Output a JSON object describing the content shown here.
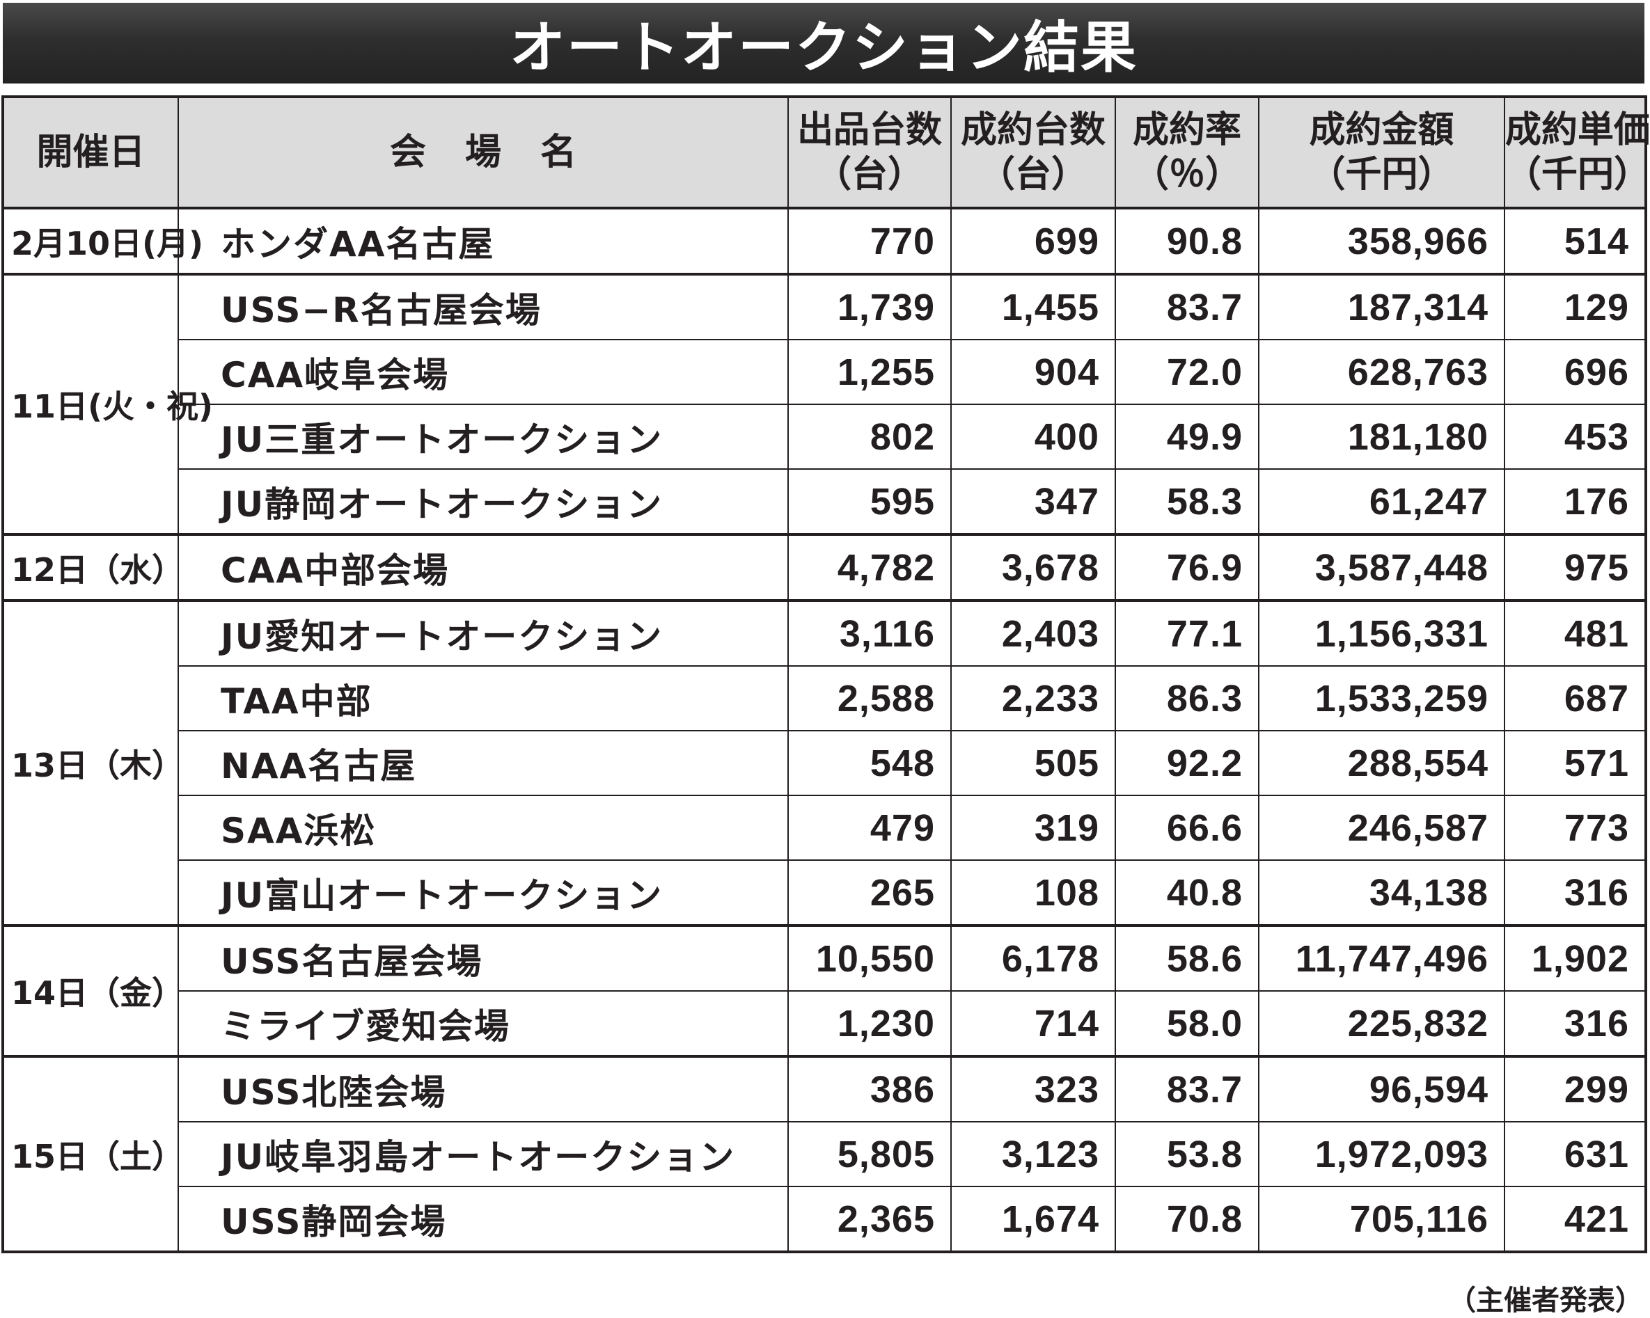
{
  "title": "オートオークション結果",
  "headers": {
    "date": [
      "開催日"
    ],
    "venue": [
      "会場名"
    ],
    "listed": [
      "出品台数",
      "（台）"
    ],
    "sold": [
      "成約台数",
      "（台）"
    ],
    "rate": [
      "成約率",
      "（％）"
    ],
    "amount": [
      "成約金額",
      "（千円）"
    ],
    "unit_price": [
      "成約単価",
      "（千円）"
    ]
  },
  "groups": [
    {
      "date": "2月10日(月)",
      "rows": [
        {
          "venue": "ホンダAA名古屋",
          "listed": "770",
          "sold": "699",
          "rate": "90.8",
          "amount": "358,966",
          "unit_price": "514"
        }
      ]
    },
    {
      "date": "11日(火・祝)",
      "rows": [
        {
          "venue": "USS−R名古屋会場",
          "listed": "1,739",
          "sold": "1,455",
          "rate": "83.7",
          "amount": "187,314",
          "unit_price": "129"
        },
        {
          "venue": "CAA岐阜会場",
          "listed": "1,255",
          "sold": "904",
          "rate": "72.0",
          "amount": "628,763",
          "unit_price": "696"
        },
        {
          "venue": "JU三重オートオークション",
          "listed": "802",
          "sold": "400",
          "rate": "49.9",
          "amount": "181,180",
          "unit_price": "453"
        },
        {
          "venue": "JU静岡オートオークション",
          "listed": "595",
          "sold": "347",
          "rate": "58.3",
          "amount": "61,247",
          "unit_price": "176"
        }
      ]
    },
    {
      "date": "12日（水）",
      "rows": [
        {
          "venue": "CAA中部会場",
          "listed": "4,782",
          "sold": "3,678",
          "rate": "76.9",
          "amount": "3,587,448",
          "unit_price": "975"
        }
      ]
    },
    {
      "date": "13日（木）",
      "rows": [
        {
          "venue": "JU愛知オートオークション",
          "listed": "3,116",
          "sold": "2,403",
          "rate": "77.1",
          "amount": "1,156,331",
          "unit_price": "481"
        },
        {
          "venue": "TAA中部",
          "listed": "2,588",
          "sold": "2,233",
          "rate": "86.3",
          "amount": "1,533,259",
          "unit_price": "687"
        },
        {
          "venue": "NAA名古屋",
          "listed": "548",
          "sold": "505",
          "rate": "92.2",
          "amount": "288,554",
          "unit_price": "571"
        },
        {
          "venue": "SAA浜松",
          "listed": "479",
          "sold": "319",
          "rate": "66.6",
          "amount": "246,587",
          "unit_price": "773"
        },
        {
          "venue": "JU富山オートオークション",
          "listed": "265",
          "sold": "108",
          "rate": "40.8",
          "amount": "34,138",
          "unit_price": "316"
        }
      ]
    },
    {
      "date": "14日（金）",
      "rows": [
        {
          "venue": "USS名古屋会場",
          "listed": "10,550",
          "sold": "6,178",
          "rate": "58.6",
          "amount": "11,747,496",
          "unit_price": "1,902"
        },
        {
          "venue": "ミライブ愛知会場",
          "listed": "1,230",
          "sold": "714",
          "rate": "58.0",
          "amount": "225,832",
          "unit_price": "316"
        }
      ]
    },
    {
      "date": "15日（土）",
      "rows": [
        {
          "venue": "USS北陸会場",
          "listed": "386",
          "sold": "323",
          "rate": "83.7",
          "amount": "96,594",
          "unit_price": "299"
        },
        {
          "venue": "JU岐阜羽島オートオークション",
          "listed": "5,805",
          "sold": "3,123",
          "rate": "53.8",
          "amount": "1,972,093",
          "unit_price": "631"
        },
        {
          "venue": "USS静岡会場",
          "listed": "2,365",
          "sold": "1,674",
          "rate": "70.8",
          "amount": "705,116",
          "unit_price": "421"
        }
      ]
    }
  ],
  "source_note": "（主催者発表）"
}
